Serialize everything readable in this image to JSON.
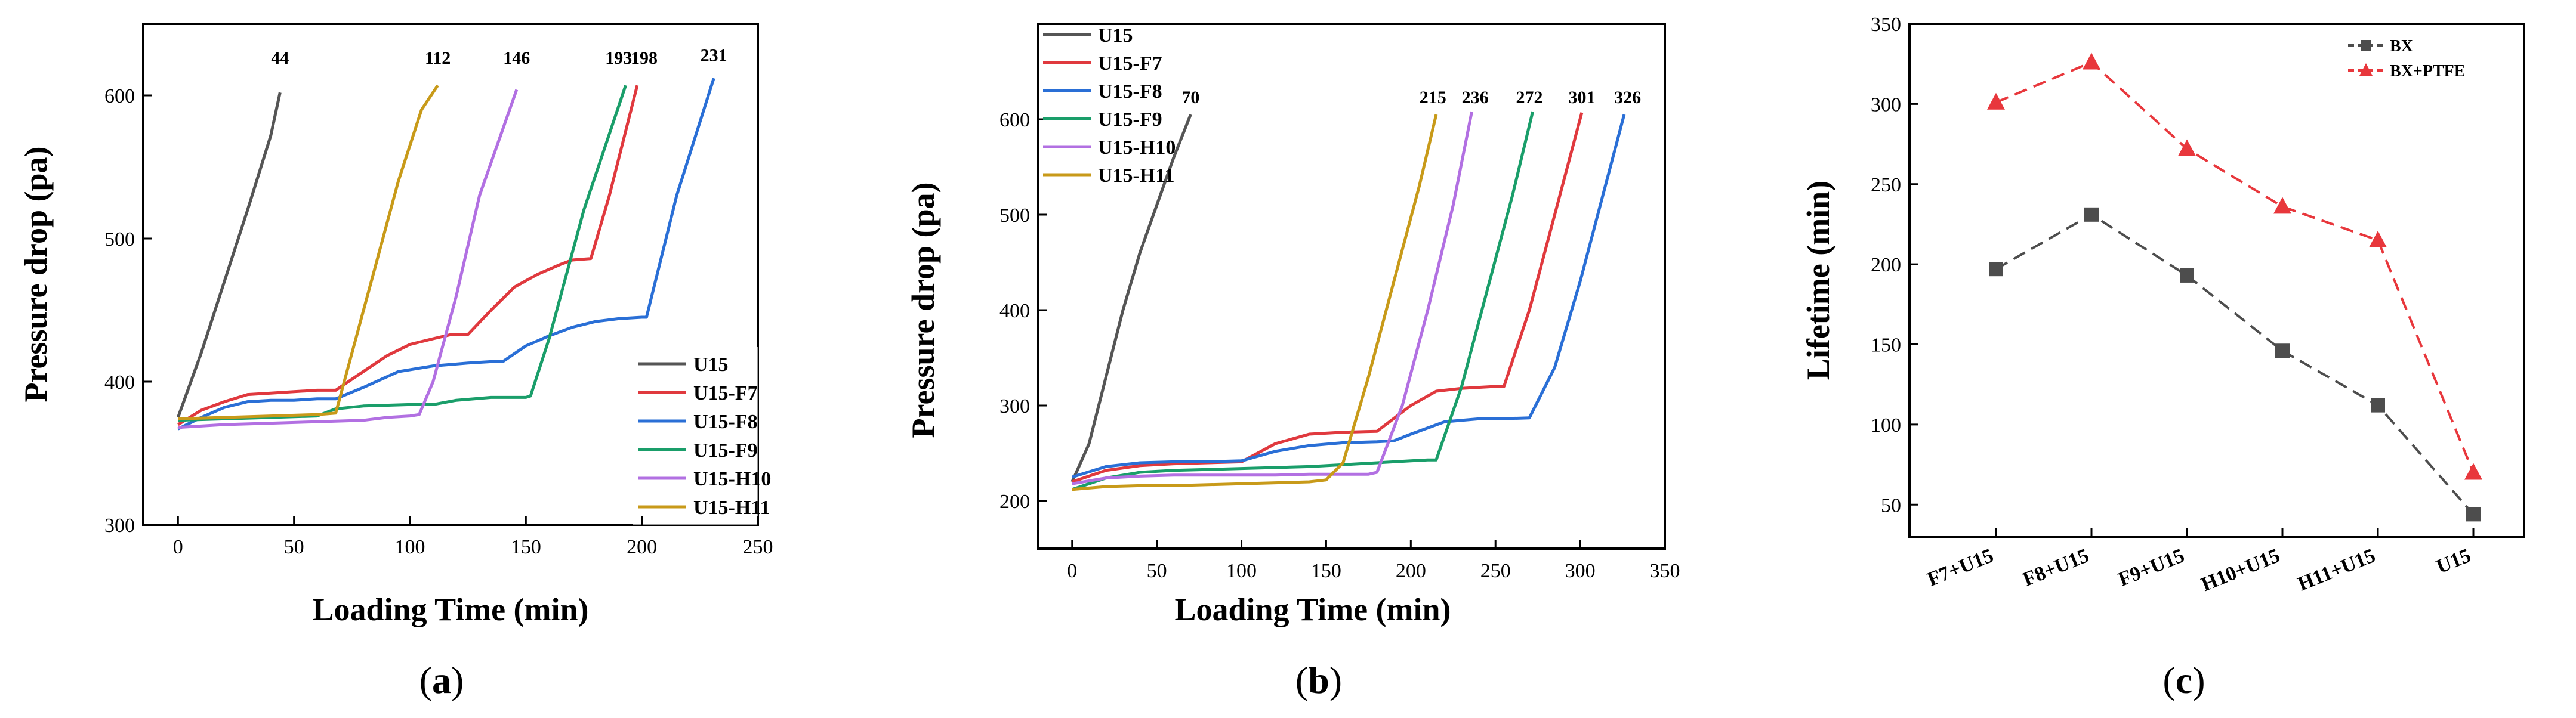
{
  "chart_data": [
    {
      "type": "line",
      "panel_label": "(a)",
      "panel_letter": "a",
      "xlabel": "Loading Time (min)",
      "ylabel": "Pressure drop (pa)",
      "xlim": [
        -15,
        250
      ],
      "ylim": [
        300,
        650
      ],
      "xticks": [
        0,
        50,
        100,
        150,
        200,
        250
      ],
      "yticks": [
        300,
        400,
        500,
        600
      ],
      "legend_position": "bottom-right",
      "series": [
        {
          "name": "U15",
          "color": "#555555",
          "x": [
            0,
            10,
            20,
            30,
            40,
            44
          ],
          "y": [
            375,
            420,
            470,
            520,
            572,
            602
          ]
        },
        {
          "name": "U15-F7",
          "color": "#e0393e",
          "x": [
            0,
            10,
            20,
            30,
            40,
            50,
            60,
            68,
            78,
            90,
            100,
            110,
            118,
            125,
            135,
            145,
            155,
            165,
            170,
            178,
            186,
            198
          ],
          "y": [
            370,
            380,
            386,
            391,
            392,
            393,
            394,
            394,
            405,
            418,
            426,
            430,
            433,
            433,
            450,
            466,
            475,
            482,
            485,
            486,
            530,
            607
          ]
        },
        {
          "name": "U15-F8",
          "color": "#2a6fd6",
          "x": [
            0,
            10,
            20,
            30,
            40,
            50,
            60,
            68,
            80,
            95,
            110,
            125,
            135,
            140,
            150,
            160,
            170,
            180,
            190,
            200,
            202,
            215,
            231
          ],
          "y": [
            367,
            375,
            382,
            386,
            387,
            387,
            388,
            388,
            396,
            407,
            411,
            413,
            414,
            414,
            425,
            432,
            438,
            442,
            444,
            445,
            445,
            530,
            612
          ]
        },
        {
          "name": "U15-F9",
          "color": "#1a9e6a",
          "x": [
            0,
            20,
            40,
            60,
            68,
            80,
            100,
            110,
            120,
            135,
            150,
            152,
            160,
            175,
            193
          ],
          "y": [
            373,
            374,
            375,
            376,
            381,
            383,
            384,
            384,
            387,
            389,
            389,
            390,
            430,
            520,
            607
          ]
        },
        {
          "name": "U15-H10",
          "color": "#b270e2",
          "x": [
            0,
            20,
            40,
            60,
            80,
            90,
            100,
            104,
            110,
            120,
            130,
            146
          ],
          "y": [
            368,
            370,
            371,
            372,
            373,
            375,
            376,
            377,
            400,
            460,
            530,
            604
          ]
        },
        {
          "name": "U15-H11",
          "color": "#c89a19",
          "x": [
            0,
            20,
            40,
            60,
            68,
            75,
            85,
            95,
            105,
            112
          ],
          "y": [
            374,
            375,
            376,
            377,
            378,
            420,
            480,
            540,
            590,
            607
          ]
        }
      ],
      "annotations": [
        {
          "text": "44",
          "x": 44,
          "y": 622
        },
        {
          "text": "112",
          "x": 112,
          "y": 622
        },
        {
          "text": "146",
          "x": 146,
          "y": 622
        },
        {
          "text": "193",
          "x": 190,
          "y": 622
        },
        {
          "text": "198",
          "x": 201,
          "y": 622
        },
        {
          "text": "231",
          "x": 231,
          "y": 624
        }
      ]
    },
    {
      "type": "line",
      "panel_label": "(b)",
      "panel_letter": "b",
      "xlabel": "Loading Time (min)",
      "ylabel": "Pressure drop (pa)",
      "xlim": [
        -20,
        350
      ],
      "ylim": [
        150,
        700
      ],
      "xticks": [
        0,
        50,
        100,
        150,
        200,
        250,
        300,
        350
      ],
      "yticks": [
        200,
        300,
        400,
        500,
        600
      ],
      "legend_position": "top-left",
      "series": [
        {
          "name": "U15",
          "color": "#555555",
          "x": [
            0,
            10,
            20,
            30,
            40,
            50,
            60,
            70
          ],
          "y": [
            220,
            260,
            330,
            400,
            460,
            510,
            560,
            605
          ]
        },
        {
          "name": "U15-F7",
          "color": "#e0393e",
          "x": [
            0,
            20,
            40,
            60,
            80,
            100,
            120,
            140,
            160,
            180,
            200,
            215,
            230,
            250,
            255,
            270,
            285,
            301
          ],
          "y": [
            220,
            232,
            237,
            239,
            240,
            241,
            260,
            270,
            272,
            273,
            300,
            315,
            318,
            320,
            320,
            400,
            500,
            607
          ]
        },
        {
          "name": "U15-F8",
          "color": "#2a6fd6",
          "x": [
            0,
            20,
            40,
            60,
            80,
            100,
            120,
            140,
            160,
            180,
            190,
            200,
            220,
            240,
            250,
            270,
            285,
            300,
            326
          ],
          "y": [
            225,
            236,
            240,
            241,
            241,
            242,
            252,
            258,
            261,
            262,
            263,
            270,
            283,
            286,
            286,
            287,
            340,
            430,
            605
          ]
        },
        {
          "name": "U15-F9",
          "color": "#1a9e6a",
          "x": [
            0,
            20,
            40,
            60,
            80,
            100,
            120,
            140,
            160,
            180,
            200,
            210,
            215,
            230,
            245,
            260,
            272
          ],
          "y": [
            212,
            224,
            230,
            232,
            233,
            234,
            235,
            236,
            238,
            240,
            242,
            243,
            243,
            320,
            420,
            520,
            608
          ]
        },
        {
          "name": "U15-H10",
          "color": "#b270e2",
          "x": [
            0,
            20,
            40,
            60,
            80,
            100,
            120,
            140,
            160,
            175,
            180,
            195,
            210,
            225,
            236
          ],
          "y": [
            218,
            224,
            226,
            227,
            227,
            227,
            227,
            228,
            228,
            228,
            230,
            300,
            400,
            510,
            608
          ]
        },
        {
          "name": "U15-H11",
          "color": "#c89a19",
          "x": [
            0,
            20,
            40,
            60,
            80,
            100,
            120,
            140,
            150,
            160,
            175,
            190,
            205,
            215
          ],
          "y": [
            212,
            215,
            216,
            216,
            217,
            218,
            219,
            220,
            222,
            240,
            330,
            430,
            530,
            605
          ]
        }
      ],
      "annotations": [
        {
          "text": "70",
          "x": 70,
          "y": 617
        },
        {
          "text": "215",
          "x": 213,
          "y": 617
        },
        {
          "text": "236",
          "x": 238,
          "y": 617
        },
        {
          "text": "272",
          "x": 270,
          "y": 617
        },
        {
          "text": "301",
          "x": 301,
          "y": 617
        },
        {
          "text": "326",
          "x": 328,
          "y": 617
        }
      ]
    },
    {
      "type": "line",
      "panel_label": "(c)",
      "panel_letter": "c",
      "xlabel": "",
      "ylabel": "Lifetime (min)",
      "categories": [
        "F7+U15",
        "F8+U15",
        "F9+U15",
        "H10+U15",
        "H11+U15",
        "U15"
      ],
      "ylim": [
        30,
        350
      ],
      "yticks": [
        50,
        100,
        150,
        200,
        250,
        300,
        350
      ],
      "legend_position": "top-right",
      "series": [
        {
          "name": "BX",
          "color": "#4d4d4d",
          "marker": "square",
          "values": [
            197,
            231,
            193,
            146,
            112,
            44
          ]
        },
        {
          "name": "BX+PTFE",
          "color": "#e8373c",
          "marker": "triangle",
          "values": [
            301,
            326,
            272,
            236,
            215,
            70
          ]
        }
      ]
    }
  ]
}
